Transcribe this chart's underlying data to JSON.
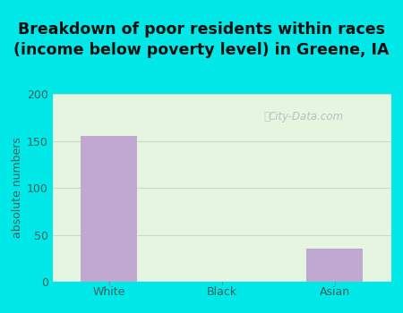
{
  "title": "Breakdown of poor residents within races\n(income below poverty level) in Greene, IA",
  "categories": [
    "White",
    "Black",
    "Asian"
  ],
  "values": [
    155,
    0,
    35
  ],
  "bar_color": "#c0a8d0",
  "ylabel": "absolute numbers",
  "ylim": [
    0,
    200
  ],
  "yticks": [
    0,
    50,
    100,
    150,
    200
  ],
  "background_outer": "#00e8e8",
  "background_plot": "#e6f5e0",
  "title_fontsize": 12.5,
  "axis_label_fontsize": 9,
  "tick_fontsize": 9,
  "title_color": "#111111",
  "tick_color": "#3a6060",
  "watermark_text": "City-Data.com",
  "watermark_color": "#a8c0bc",
  "grid_color": "#c8dcc0",
  "bar_width": 0.5
}
